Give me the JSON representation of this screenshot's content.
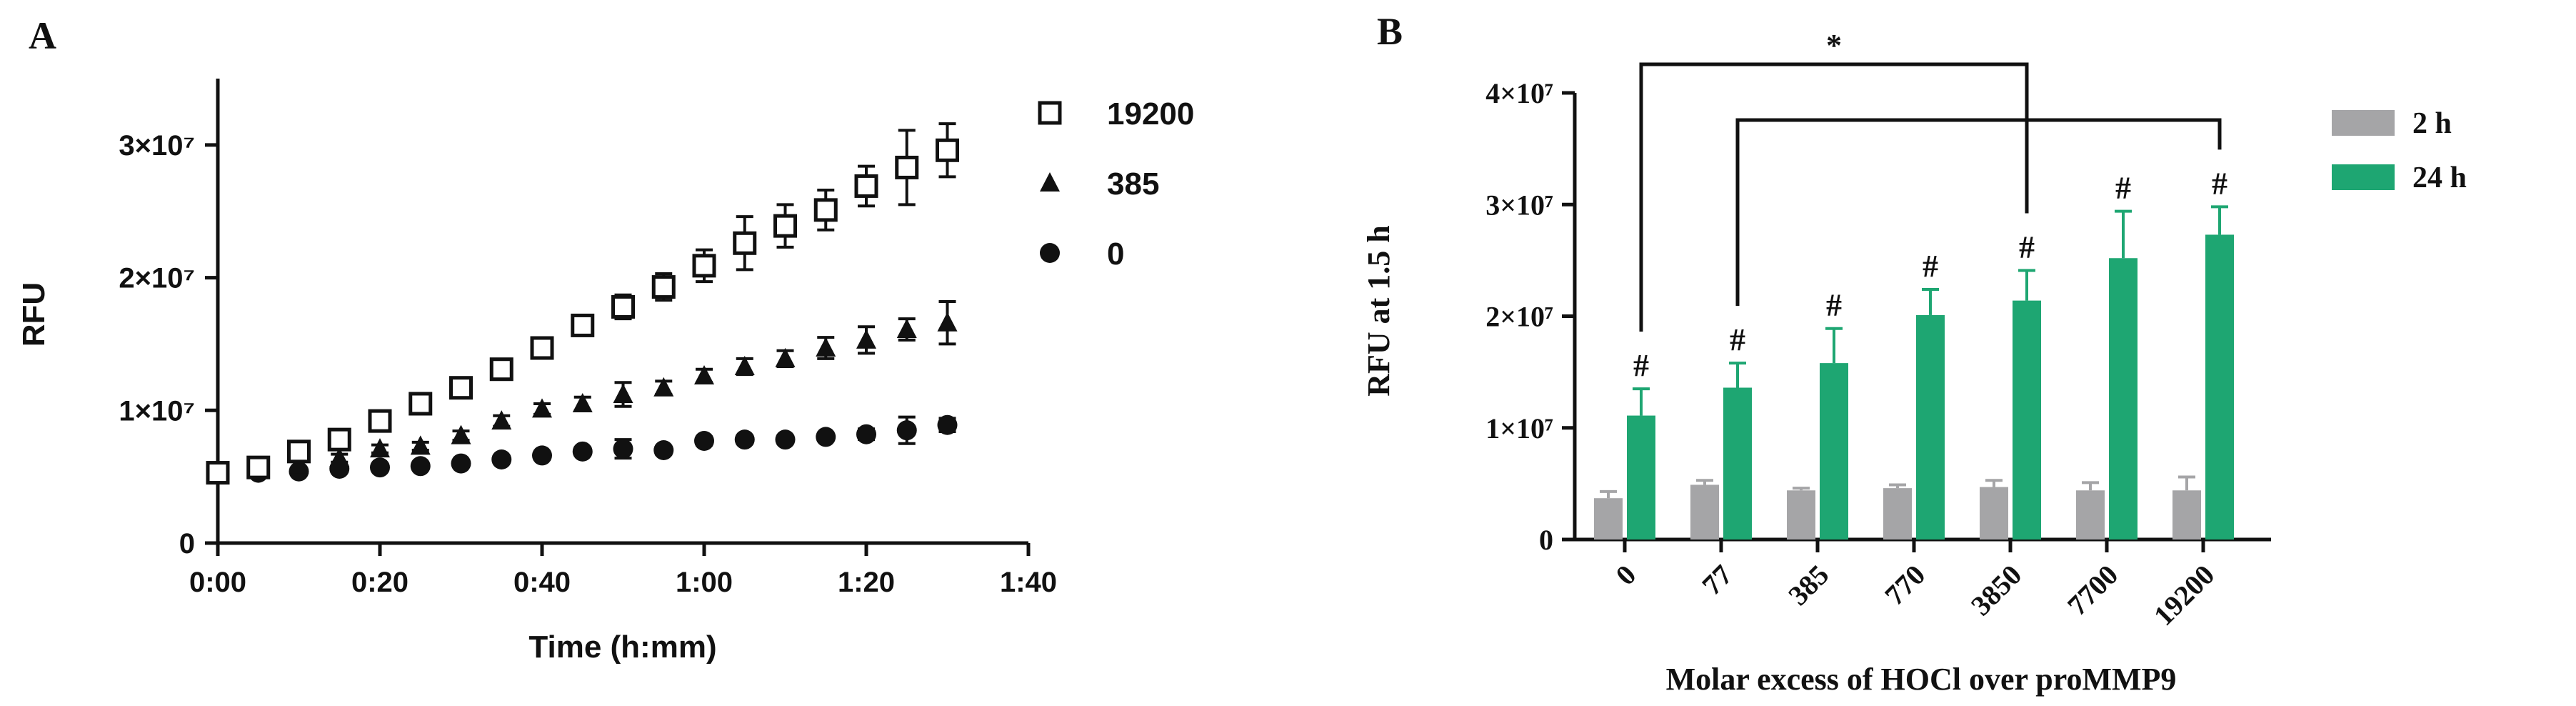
{
  "chart_data": [
    {
      "panel": "A",
      "type": "scatter",
      "xlabel": "Time (h:mm)",
      "ylabel": "RFU",
      "x_ticks": [
        "0:00",
        "0:20",
        "0:40",
        "1:00",
        "1:20",
        "1:40"
      ],
      "x_tick_values": [
        0,
        20,
        40,
        60,
        80,
        100
      ],
      "xlim": [
        0,
        100
      ],
      "y_ticks": [
        "0",
        "1×10⁷",
        "2×10⁷",
        "3×10⁷"
      ],
      "y_tick_values": [
        0,
        10000000,
        20000000,
        30000000
      ],
      "ylim": [
        0,
        35000000
      ],
      "legend_position": "top-right",
      "grid": false,
      "x": [
        0,
        5,
        10,
        15,
        20,
        25,
        30,
        35,
        40,
        45,
        50,
        55,
        60,
        65,
        70,
        75,
        80,
        85,
        90
      ],
      "series": [
        {
          "name": "19200",
          "marker": "square-open",
          "values": [
            5300000,
            5700000,
            6900000,
            7800000,
            9200000,
            10500000,
            11700000,
            13100000,
            14700000,
            16400000,
            17800000,
            19300000,
            20900000,
            22600000,
            23900000,
            25100000,
            26900000,
            28300000,
            29600000
          ],
          "errors": [
            300000,
            300000,
            400000,
            400000,
            400000,
            500000,
            500000,
            500000,
            600000,
            700000,
            900000,
            1000000,
            1200000,
            2000000,
            1600000,
            1500000,
            1500000,
            2800000,
            2000000
          ]
        },
        {
          "name": "385",
          "marker": "triangle-filled",
          "values": [
            5300000,
            5500000,
            5900000,
            6400000,
            7100000,
            7300000,
            8100000,
            9200000,
            10100000,
            10500000,
            11200000,
            11700000,
            12600000,
            13300000,
            13900000,
            14700000,
            15300000,
            16100000,
            16600000
          ],
          "errors": [
            250000,
            250000,
            300000,
            300000,
            300000,
            300000,
            350000,
            400000,
            400000,
            500000,
            900000,
            500000,
            500000,
            600000,
            600000,
            800000,
            1000000,
            800000,
            1600000
          ]
        },
        {
          "name": "0",
          "marker": "circle-filled",
          "values": [
            5200000,
            5300000,
            5400000,
            5600000,
            5700000,
            5800000,
            6000000,
            6300000,
            6600000,
            6900000,
            7100000,
            7000000,
            7700000,
            7800000,
            7800000,
            8000000,
            8200000,
            8500000,
            8900000
          ],
          "errors": [
            200000,
            200000,
            200000,
            200000,
            200000,
            200000,
            250000,
            250000,
            300000,
            300000,
            700000,
            300000,
            300000,
            300000,
            300000,
            300000,
            400000,
            1000000,
            500000
          ]
        }
      ]
    },
    {
      "panel": "B",
      "type": "bar",
      "xlabel": "Molar excess of HOCl over proMMP9",
      "ylabel": "RFU at 1.5 h",
      "categories": [
        "0",
        "77",
        "385",
        "770",
        "3850",
        "7700",
        "19200"
      ],
      "y_ticks": [
        "0",
        "1×10⁷",
        "2×10⁷",
        "3×10⁷",
        "4×10⁷"
      ],
      "y_tick_values": [
        0,
        10000000,
        20000000,
        30000000,
        40000000
      ],
      "ylim": [
        0,
        40000000
      ],
      "legend_position": "top-right",
      "grid": false,
      "colors": {
        "2 h": "#a5a5a7",
        "24 h": "#1ea672"
      },
      "series": [
        {
          "name": "2 h",
          "values": [
            3700000,
            4900000,
            4400000,
            4600000,
            4700000,
            4400000,
            4400000
          ],
          "errors": [
            600000,
            400000,
            200000,
            300000,
            600000,
            700000,
            1200000
          ]
        },
        {
          "name": "24 h",
          "values": [
            11100000,
            13600000,
            15800000,
            20100000,
            21400000,
            25200000,
            27300000
          ],
          "errors": [
            2400000,
            2200000,
            3100000,
            2300000,
            2700000,
            4200000,
            2500000
          ]
        }
      ],
      "significance_marks": [
        {
          "category": "0",
          "label": "#"
        },
        {
          "category": "77",
          "label": "#"
        },
        {
          "category": "385",
          "label": "#"
        },
        {
          "category": "770",
          "label": "#"
        },
        {
          "category": "3850",
          "label": "#"
        },
        {
          "category": "7700",
          "label": "#"
        },
        {
          "category": "19200",
          "label": "#"
        }
      ],
      "brackets": [
        {
          "from": "0",
          "to": "3850",
          "label": "*"
        },
        {
          "from": "77",
          "to": "19200",
          "label": ""
        }
      ]
    }
  ]
}
